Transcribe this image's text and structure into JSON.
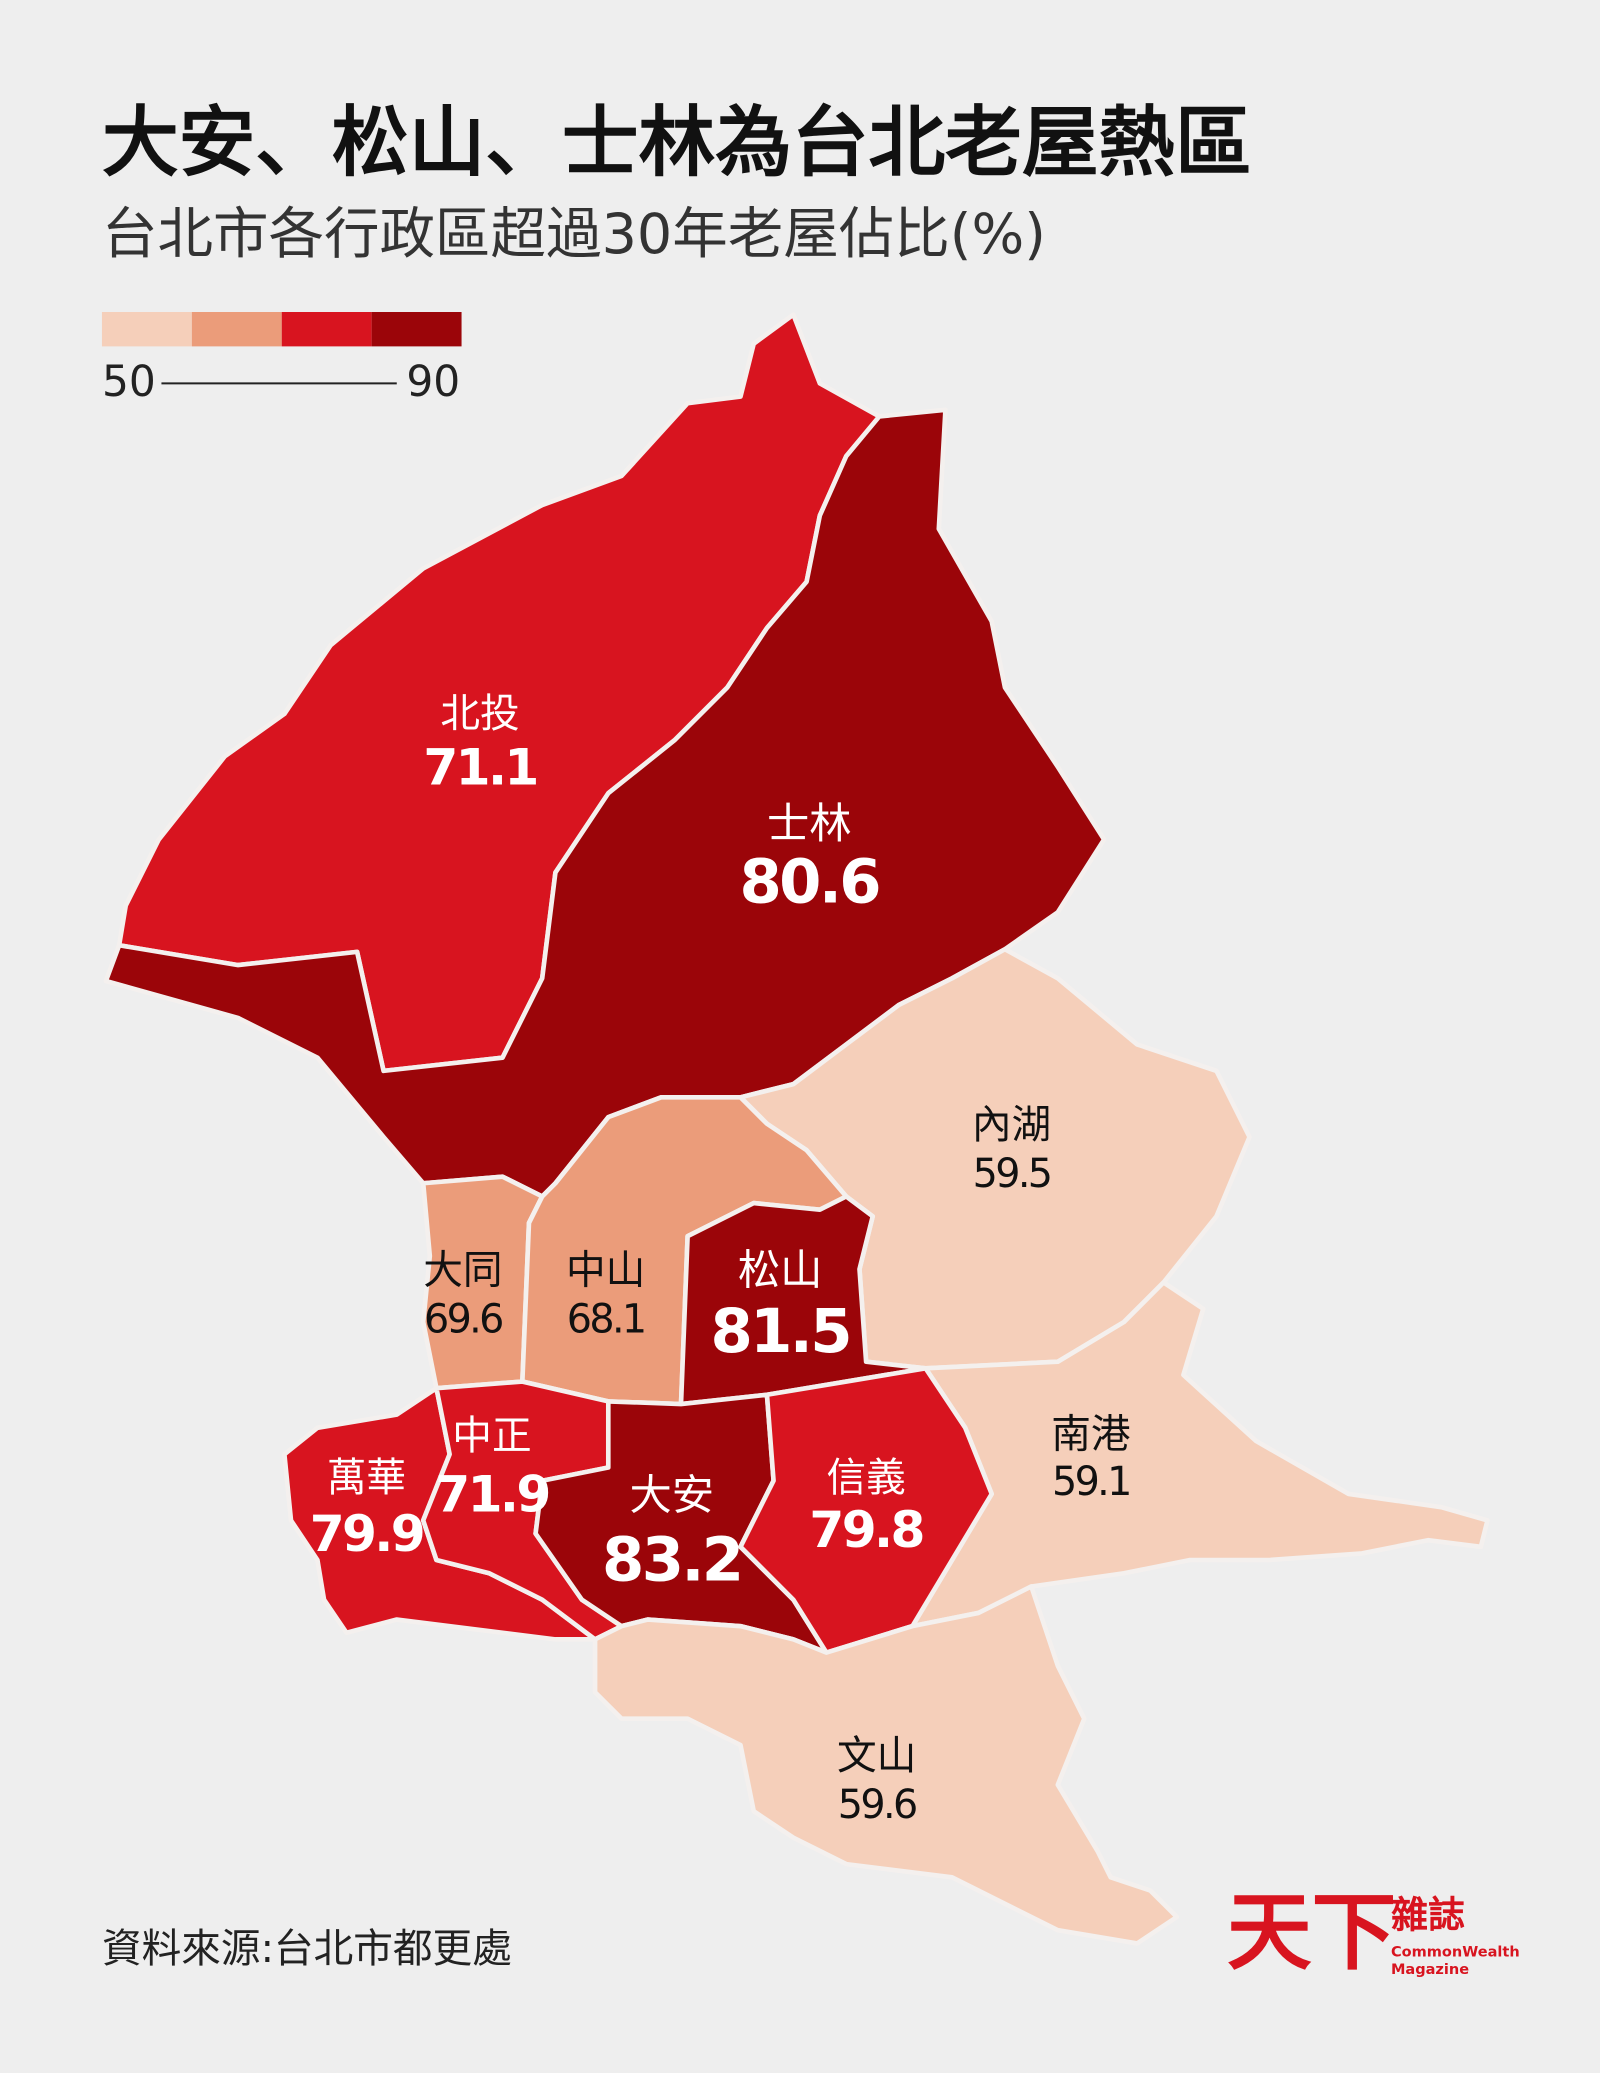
{
  "header": {
    "title": "大安、松山、士林為台北老屋熱區",
    "subtitle": "台北市各行政區超過30年老屋佔比(%)"
  },
  "legend": {
    "min": 50,
    "max": 90,
    "colors": [
      "#f5cfba",
      "#eb9c7a",
      "#d8141f",
      "#9b0509"
    ]
  },
  "districts": [
    {
      "name": "北投",
      "value": 71.1
    },
    {
      "name": "士林",
      "value": 80.6
    },
    {
      "name": "內湖",
      "value": 59.5
    },
    {
      "name": "大同",
      "value": 69.6
    },
    {
      "name": "中山",
      "value": 68.1
    },
    {
      "name": "松山",
      "value": 81.5
    },
    {
      "name": "南港",
      "value": 59.1
    },
    {
      "name": "萬華",
      "value": 79.9
    },
    {
      "name": "中正",
      "value": 71.9
    },
    {
      "name": "大安",
      "value": 83.2
    },
    {
      "name": "信義",
      "value": 79.8
    },
    {
      "name": "文山",
      "value": 59.6
    }
  ],
  "footer": {
    "source": "資料來源:台北市都更處"
  },
  "logo": {
    "main": "天下",
    "side": "雜誌",
    "line1": "CommonWealth",
    "line2": "Magazine"
  }
}
